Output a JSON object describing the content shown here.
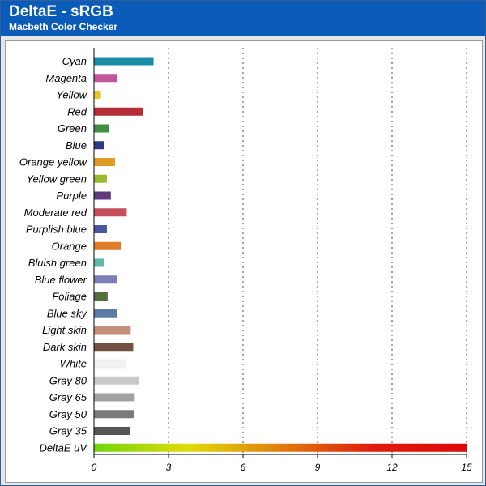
{
  "header": {
    "title": "DeltaE - sRGB",
    "subtitle": "Macbeth Color Checker"
  },
  "colors": {
    "header_bg": "#0a5cb8",
    "frame_bg": "#e6e6e6",
    "deltae_gradient": [
      "#6fd60c",
      "#e0dc0a",
      "#e07e0c",
      "#de1a0c",
      "#dc0808"
    ]
  },
  "chart_data": {
    "type": "bar",
    "orientation": "horizontal",
    "title": "DeltaE - sRGB",
    "subtitle": "Macbeth Color Checker",
    "xlabel": "",
    "ylabel": "",
    "xlim": [
      0,
      15
    ],
    "xticks": [
      0,
      3,
      6,
      9,
      12,
      15
    ],
    "grid": "vertical dotted",
    "legend": "none",
    "categories": [
      "Cyan",
      "Magenta",
      "Yellow",
      "Red",
      "Green",
      "Blue",
      "Orange yellow",
      "Yellow green",
      "Purple",
      "Moderate red",
      "Purplish blue",
      "Orange",
      "Bluish green",
      "Blue flower",
      "Foliage",
      "Blue sky",
      "Light skin",
      "Dark skin",
      "White",
      "Gray 80",
      "Gray 65",
      "Gray 50",
      "Gray 35",
      "DeltaE uV"
    ],
    "values": [
      2.4,
      0.95,
      0.28,
      1.98,
      0.6,
      0.42,
      0.85,
      0.52,
      0.68,
      1.32,
      0.52,
      1.1,
      0.4,
      0.92,
      0.55,
      0.93,
      1.48,
      1.58,
      1.28,
      1.8,
      1.64,
      1.62,
      1.46,
      15
    ],
    "bar_colors": [
      "#1a8ca6",
      "#c2569a",
      "#e8c428",
      "#b42c35",
      "#3f8e43",
      "#313888",
      "#e19c26",
      "#9aba2e",
      "#613a7c",
      "#c44f5c",
      "#4a56a2",
      "#df7c28",
      "#5cbaa6",
      "#7c7eb8",
      "#566e3e",
      "#5e7aa6",
      "#c4907c",
      "#735143",
      "#f2f2f2",
      "#c8c8c8",
      "#a2a2a2",
      "#7a7a7a",
      "#555555",
      "gradient"
    ]
  }
}
